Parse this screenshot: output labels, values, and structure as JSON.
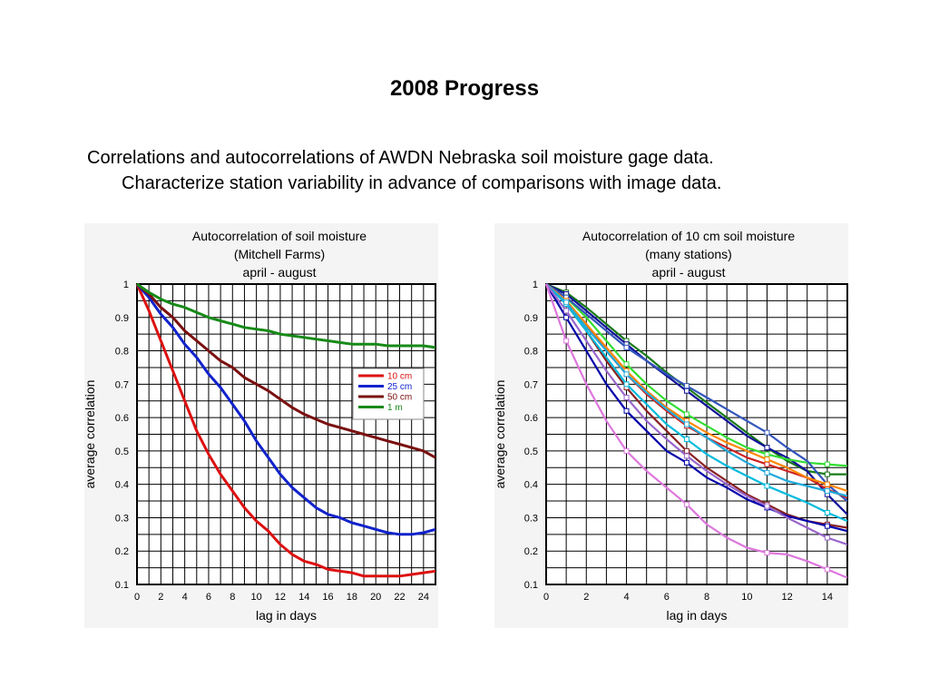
{
  "slide": {
    "title": "2008 Progress",
    "body_line1": "Correlations and autocorrelations of AWDN Nebraska soil moisture gage data.",
    "body_line2": "Characterize station variability in advance of comparisons with image data."
  },
  "chart_data": [
    {
      "type": "line",
      "title": [
        "Autocorrelation of soil moisture",
        "(Mitchell Farms)",
        "april - august"
      ],
      "xlabel": "lag in days",
      "ylabel": "average correlation",
      "xlim": [
        0,
        25
      ],
      "ylim": [
        0.1,
        1.0
      ],
      "xticks": [
        "0",
        "2",
        "4",
        "6",
        "8",
        "10",
        "12",
        "14",
        "16",
        "18",
        "20",
        "22",
        "24"
      ],
      "yticks": [
        "0.1",
        "0.2",
        "0.3",
        "0.4",
        "0.5",
        "0.6",
        "0.7",
        "0.8",
        "0.9",
        "1"
      ],
      "grid": true,
      "legend_position": "right-middle",
      "series": [
        {
          "name": "10 cm",
          "color": "#dd1111",
          "x": [
            0,
            1,
            2,
            3,
            4,
            5,
            6,
            7,
            8,
            9,
            10,
            11,
            12,
            13,
            14,
            15,
            16,
            17,
            18,
            19,
            20,
            21,
            22,
            23,
            24,
            25
          ],
          "y": [
            1.0,
            0.92,
            0.83,
            0.74,
            0.65,
            0.56,
            0.49,
            0.43,
            0.38,
            0.33,
            0.29,
            0.26,
            0.22,
            0.19,
            0.17,
            0.16,
            0.145,
            0.14,
            0.135,
            0.125,
            0.125,
            0.125,
            0.125,
            0.13,
            0.135,
            0.14
          ]
        },
        {
          "name": "25 cm",
          "color": "#1122cc",
          "x": [
            0,
            1,
            2,
            3,
            4,
            5,
            6,
            7,
            8,
            9,
            10,
            11,
            12,
            13,
            14,
            15,
            16,
            17,
            18,
            19,
            20,
            21,
            22,
            23,
            24,
            25
          ],
          "y": [
            1.0,
            0.96,
            0.91,
            0.87,
            0.82,
            0.78,
            0.73,
            0.69,
            0.64,
            0.59,
            0.53,
            0.48,
            0.43,
            0.39,
            0.36,
            0.33,
            0.31,
            0.3,
            0.285,
            0.275,
            0.265,
            0.255,
            0.25,
            0.25,
            0.255,
            0.265
          ]
        },
        {
          "name": "50 cm",
          "color": "#7a1010",
          "x": [
            0,
            1,
            2,
            3,
            4,
            5,
            6,
            7,
            8,
            9,
            10,
            11,
            12,
            13,
            14,
            15,
            16,
            17,
            18,
            19,
            20,
            21,
            22,
            23,
            24,
            25
          ],
          "y": [
            1.0,
            0.97,
            0.93,
            0.9,
            0.86,
            0.83,
            0.8,
            0.77,
            0.75,
            0.72,
            0.7,
            0.68,
            0.655,
            0.63,
            0.61,
            0.595,
            0.58,
            0.57,
            0.56,
            0.55,
            0.54,
            0.53,
            0.52,
            0.51,
            0.5,
            0.48
          ]
        },
        {
          "name": "1 m",
          "color": "#178a17",
          "x": [
            0,
            1,
            2,
            3,
            4,
            5,
            6,
            7,
            8,
            9,
            10,
            11,
            12,
            13,
            14,
            15,
            16,
            17,
            18,
            19,
            20,
            21,
            22,
            23,
            24,
            25
          ],
          "y": [
            1.0,
            0.975,
            0.955,
            0.94,
            0.93,
            0.915,
            0.9,
            0.89,
            0.88,
            0.87,
            0.865,
            0.86,
            0.85,
            0.845,
            0.84,
            0.835,
            0.83,
            0.825,
            0.82,
            0.82,
            0.82,
            0.815,
            0.815,
            0.815,
            0.815,
            0.81
          ]
        }
      ]
    },
    {
      "type": "line",
      "title": [
        "Autocorrelation of 10 cm soil moisture",
        "(many stations)",
        "april - august"
      ],
      "xlabel": "lag in days",
      "ylabel": "average correlation",
      "xlim": [
        0,
        15
      ],
      "ylim": [
        0.1,
        1.0
      ],
      "xticks": [
        "0",
        "2",
        "4",
        "6",
        "8",
        "10",
        "12",
        "14"
      ],
      "yticks": [
        "0.1",
        "0.2",
        "0.3",
        "0.4",
        "0.5",
        "0.6",
        "0.7",
        "0.8",
        "0.9",
        "1"
      ],
      "grid": true,
      "series": [
        {
          "color": "#1a7a1a",
          "x": [
            0,
            1,
            2,
            3,
            4,
            5,
            6,
            7,
            8,
            9,
            10,
            11,
            12,
            13,
            14,
            15
          ],
          "y": [
            1.0,
            0.975,
            0.93,
            0.88,
            0.83,
            0.785,
            0.735,
            0.69,
            0.645,
            0.6,
            0.555,
            0.51,
            0.47,
            0.44,
            0.43,
            0.43
          ]
        },
        {
          "color": "#111199",
          "x": [
            0,
            1,
            2,
            3,
            4,
            5,
            6,
            7,
            8,
            9,
            10,
            11,
            12,
            13,
            14,
            15
          ],
          "y": [
            1.0,
            0.97,
            0.92,
            0.87,
            0.82,
            0.77,
            0.725,
            0.68,
            0.635,
            0.59,
            0.545,
            0.51,
            0.48,
            0.44,
            0.37,
            0.31
          ]
        },
        {
          "color": "#33dd33",
          "x": [
            0,
            1,
            2,
            3,
            4,
            5,
            6,
            7,
            8,
            9,
            10,
            11,
            12,
            13,
            14,
            15
          ],
          "y": [
            1.0,
            0.96,
            0.9,
            0.83,
            0.76,
            0.7,
            0.65,
            0.61,
            0.575,
            0.54,
            0.51,
            0.49,
            0.475,
            0.465,
            0.46,
            0.455
          ]
        },
        {
          "color": "#3355bb",
          "x": [
            0,
            1,
            2,
            3,
            4,
            5,
            6,
            7,
            8,
            9,
            10,
            11,
            12,
            13,
            14,
            15
          ],
          "y": [
            1.0,
            0.96,
            0.91,
            0.86,
            0.81,
            0.77,
            0.73,
            0.695,
            0.66,
            0.625,
            0.59,
            0.555,
            0.51,
            0.47,
            0.4,
            0.35
          ]
        },
        {
          "color": "#cc2222",
          "x": [
            0,
            1,
            2,
            3,
            4,
            5,
            6,
            7,
            8,
            9,
            10,
            11,
            12,
            13,
            14,
            15
          ],
          "y": [
            1.0,
            0.95,
            0.88,
            0.8,
            0.73,
            0.67,
            0.62,
            0.575,
            0.54,
            0.51,
            0.48,
            0.46,
            0.44,
            0.42,
            0.385,
            0.36
          ]
        },
        {
          "color": "#ff8800",
          "x": [
            0,
            1,
            2,
            3,
            4,
            5,
            6,
            7,
            8,
            9,
            10,
            11,
            12,
            13,
            14,
            15
          ],
          "y": [
            1.0,
            0.95,
            0.88,
            0.81,
            0.74,
            0.68,
            0.63,
            0.59,
            0.555,
            0.525,
            0.5,
            0.475,
            0.45,
            0.42,
            0.4,
            0.38
          ]
        },
        {
          "color": "#882222",
          "x": [
            0,
            1,
            2,
            3,
            4,
            5,
            6,
            7,
            8,
            9,
            10,
            11,
            12,
            13,
            14,
            15
          ],
          "y": [
            1.0,
            0.94,
            0.86,
            0.77,
            0.69,
            0.62,
            0.56,
            0.5,
            0.45,
            0.41,
            0.37,
            0.34,
            0.31,
            0.29,
            0.28,
            0.27
          ]
        },
        {
          "color": "#00bbdd",
          "x": [
            0,
            1,
            2,
            3,
            4,
            5,
            6,
            7,
            8,
            9,
            10,
            11,
            12,
            13,
            14,
            15
          ],
          "y": [
            1.0,
            0.94,
            0.86,
            0.78,
            0.7,
            0.64,
            0.58,
            0.535,
            0.49,
            0.455,
            0.425,
            0.395,
            0.37,
            0.345,
            0.315,
            0.29
          ]
        },
        {
          "color": "#22aadd",
          "x": [
            0,
            1,
            2,
            3,
            4,
            5,
            6,
            7,
            8,
            9,
            10,
            11,
            12,
            13,
            14,
            15
          ],
          "y": [
            1.0,
            0.945,
            0.87,
            0.8,
            0.73,
            0.675,
            0.625,
            0.58,
            0.54,
            0.5,
            0.465,
            0.435,
            0.41,
            0.395,
            0.38,
            0.365
          ]
        },
        {
          "color": "#0000aa",
          "x": [
            0,
            1,
            2,
            3,
            4,
            5,
            6,
            7,
            8,
            9,
            10,
            11,
            12,
            13,
            14,
            15
          ],
          "y": [
            1.0,
            0.9,
            0.8,
            0.7,
            0.62,
            0.56,
            0.5,
            0.465,
            0.42,
            0.39,
            0.355,
            0.33,
            0.305,
            0.29,
            0.275,
            0.26
          ]
        },
        {
          "color": "#9966cc",
          "x": [
            0,
            1,
            2,
            3,
            4,
            5,
            6,
            7,
            8,
            9,
            10,
            11,
            12,
            13,
            14,
            15
          ],
          "y": [
            1.0,
            0.92,
            0.83,
            0.74,
            0.66,
            0.59,
            0.535,
            0.485,
            0.44,
            0.4,
            0.365,
            0.335,
            0.3,
            0.27,
            0.24,
            0.22
          ]
        },
        {
          "color": "#dd77dd",
          "x": [
            0,
            1,
            2,
            3,
            4,
            5,
            6,
            7,
            8,
            9,
            10,
            11,
            12,
            13,
            14,
            15
          ],
          "y": [
            1.0,
            0.83,
            0.7,
            0.59,
            0.5,
            0.44,
            0.39,
            0.34,
            0.28,
            0.24,
            0.21,
            0.195,
            0.19,
            0.17,
            0.145,
            0.12
          ]
        }
      ]
    }
  ]
}
